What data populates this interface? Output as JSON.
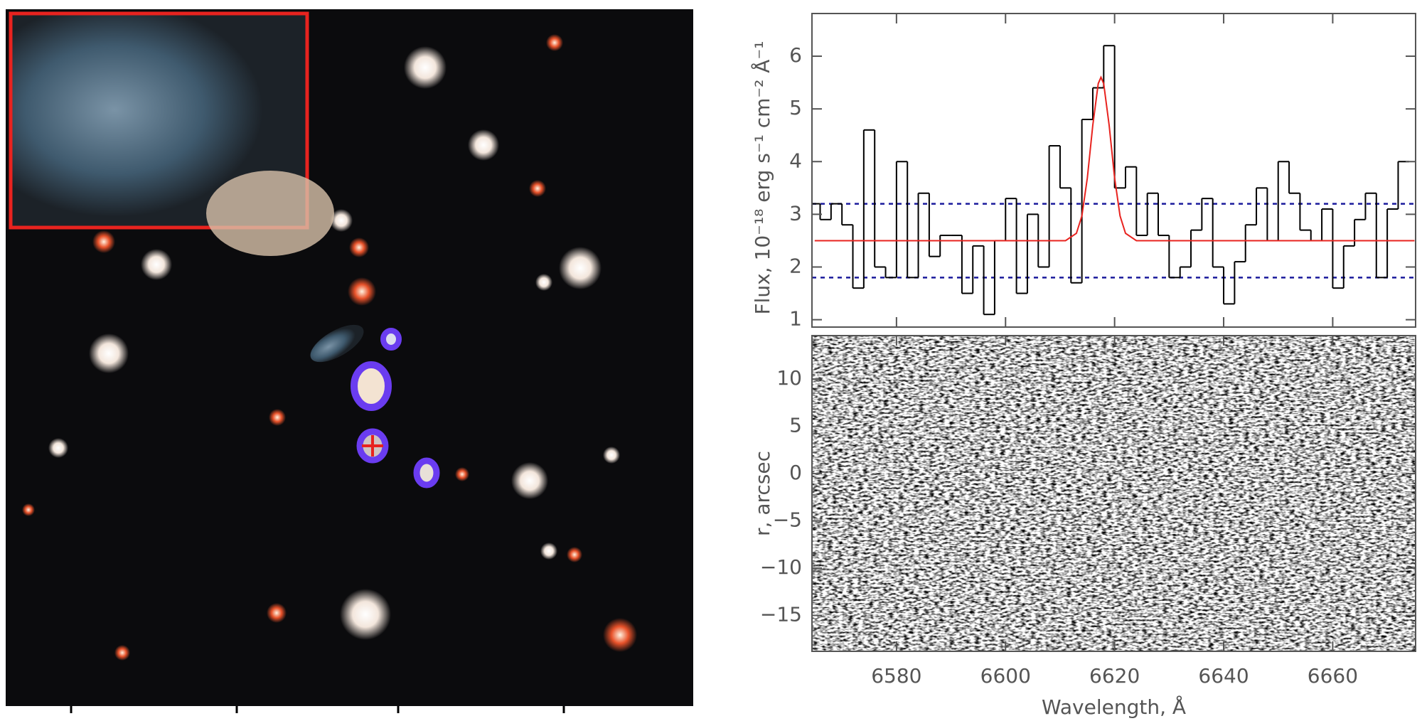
{
  "chart_data": [
    {
      "type": "line",
      "ylabel": "Flux, 10⁻¹⁸ erg s⁻¹ cm⁻² Å⁻¹",
      "xlim": [
        6564.5,
        6675.2
      ],
      "ylim": [
        0.86,
        6.81
      ],
      "xticks": [
        6580,
        6600,
        6620,
        6640,
        6660
      ],
      "yticks": [
        1,
        2,
        3,
        4,
        5,
        6
      ],
      "series": [
        {
          "color": "#000000",
          "step": "mid",
          "x": [
            6565,
            6567,
            6569,
            6571,
            6573,
            6575,
            6577,
            6579,
            6581,
            6583,
            6585,
            6587,
            6589,
            6591,
            6593,
            6595,
            6597,
            6599,
            6601,
            6603,
            6605,
            6607,
            6609,
            6611,
            6613,
            6615,
            6617,
            6619,
            6621,
            6623,
            6625,
            6627,
            6629,
            6631,
            6633,
            6635,
            6637,
            6639,
            6641,
            6643,
            6645,
            6647,
            6649,
            6651,
            6653,
            6655,
            6657,
            6659,
            6661,
            6663,
            6665,
            6667,
            6669,
            6671,
            6673
          ],
          "values": [
            3.2,
            2.9,
            3.2,
            2.8,
            1.6,
            4.6,
            2.0,
            1.8,
            4.0,
            1.8,
            3.4,
            2.2,
            2.6,
            2.6,
            1.5,
            2.4,
            1.1,
            2.5,
            3.3,
            1.5,
            3.0,
            2.0,
            4.3,
            3.5,
            1.7,
            4.8,
            5.4,
            6.2,
            3.5,
            3.9,
            2.6,
            3.4,
            2.6,
            1.8,
            2.0,
            2.7,
            3.3,
            2.0,
            1.3,
            2.1,
            2.8,
            3.5,
            2.5,
            4.0,
            3.4,
            2.7,
            2.5,
            3.1,
            1.6,
            2.4,
            2.9,
            3.4,
            1.8,
            3.1,
            4.0
          ]
        },
        {
          "color": "#e8231f",
          "x": [
            6565,
            6611,
            6613,
            6614,
            6615,
            6616,
            6617,
            6617.5,
            6618,
            6619,
            6620,
            6621,
            6622,
            6624,
            6675
          ],
          "values": [
            2.5,
            2.5,
            2.64,
            2.97,
            3.69,
            4.69,
            5.48,
            5.6,
            5.48,
            4.69,
            3.69,
            2.97,
            2.64,
            2.5,
            2.5
          ]
        }
      ],
      "hlines": {
        "values": [
          3.2,
          1.8
        ],
        "color": "#1a1a9c"
      }
    },
    {
      "type": "heatmap",
      "xlabel": "Wavelength, Å",
      "ylabel": "r, arcsec",
      "xlim": [
        6564.5,
        6675.2
      ],
      "ylim": [
        -18.8,
        14.6
      ],
      "xticks": [
        6580,
        6600,
        6620,
        6640,
        6660
      ],
      "yticks": [
        {
          "value": -15,
          "label": "−15"
        },
        {
          "value": -10,
          "label": "−10"
        },
        {
          "value": -5,
          "label": "−5"
        },
        0,
        5,
        10
      ]
    }
  ]
}
